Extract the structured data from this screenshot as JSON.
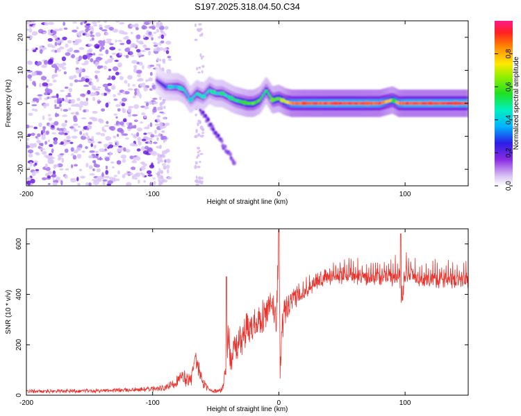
{
  "title": "S197.2025.318.04.50.C34",
  "chart_data": [
    {
      "type": "heatmap",
      "xlabel": "Height of straight line (km)",
      "ylabel": "Frequency (Hz)",
      "xlim": [
        -200,
        150
      ],
      "ylim": [
        -25,
        25
      ],
      "xticks": [
        -200,
        -100,
        0,
        100
      ],
      "yticks": [
        -20,
        -10,
        0,
        10,
        20
      ],
      "colorbar": {
        "label": "Normalized spectral amplitude",
        "range": [
          0,
          1
        ],
        "ticks": [
          0.0,
          0.2,
          0.4,
          0.6,
          0.8
        ],
        "tick_labels": [
          "0.0",
          "0.2",
          "0.4",
          "0.6",
          "0.8"
        ],
        "colormap": "white-purple-blue-cyan-green-yellow-red-magenta"
      },
      "features": [
        {
          "name": "diffuse noise region",
          "x_range": [
            -200,
            -90
          ],
          "f_range": [
            -25,
            25
          ],
          "amplitude": 0.15
        },
        {
          "name": "carrier line",
          "x_range": [
            -95,
            150
          ],
          "frequency_hz": 0,
          "amplitude": 0.85
        },
        {
          "name": "descending branch",
          "x_start": -62,
          "x_end": -35,
          "f_start": -2,
          "f_end": -18,
          "amplitude": 0.2
        }
      ],
      "ridge": {
        "x": [
          -97,
          -90,
          -85,
          -80,
          -75,
          -70,
          -65,
          -60,
          -55,
          -50,
          -45,
          -40,
          -35,
          -30,
          -25,
          -20,
          -15,
          -10,
          -5,
          0,
          5,
          10,
          20,
          40,
          60,
          80,
          90,
          95,
          100,
          120,
          150
        ],
        "f": [
          7,
          5,
          5,
          5,
          4,
          1,
          3,
          2,
          4,
          3,
          3,
          2,
          1,
          0.5,
          0,
          0,
          1,
          4,
          1,
          1.5,
          0.5,
          0,
          0,
          0,
          0,
          0,
          1,
          0,
          0,
          0,
          0
        ],
        "amplitude": [
          0.2,
          0.3,
          0.35,
          0.4,
          0.45,
          0.35,
          0.45,
          0.4,
          0.45,
          0.4,
          0.45,
          0.45,
          0.5,
          0.55,
          0.6,
          0.6,
          0.55,
          0.5,
          0.6,
          0.6,
          0.7,
          0.85,
          0.88,
          0.9,
          0.9,
          0.88,
          0.7,
          0.85,
          0.9,
          0.9,
          0.9
        ]
      }
    },
    {
      "type": "line",
      "xlabel": "Height of straight line (km)",
      "ylabel": "SNR (10 * v/v)",
      "xlim": [
        -200,
        150
      ],
      "ylim": [
        0,
        660
      ],
      "xticks": [
        -200,
        -100,
        0,
        100
      ],
      "yticks": [
        0,
        200,
        400,
        600
      ],
      "series": [
        {
          "name": "SNR",
          "color": "#e8322c",
          "x": [
            -200,
            -150,
            -110,
            -90,
            -85,
            -80,
            -75,
            -70,
            -66,
            -60,
            -55,
            -50,
            -45,
            -42,
            -40,
            -38,
            -35,
            -30,
            -25,
            -20,
            -15,
            -10,
            -5,
            -2,
            0,
            1,
            3,
            5,
            10,
            15,
            20,
            25,
            30,
            40,
            50,
            60,
            70,
            80,
            90,
            95,
            97,
            100,
            110,
            120,
            130,
            140,
            150
          ],
          "values": [
            15,
            18,
            22,
            28,
            40,
            60,
            70,
            55,
            140,
            50,
            20,
            15,
            20,
            110,
            230,
            150,
            190,
            220,
            260,
            280,
            300,
            320,
            360,
            300,
            650,
            100,
            290,
            330,
            360,
            400,
            420,
            440,
            455,
            470,
            475,
            470,
            465,
            470,
            465,
            480,
            360,
            490,
            460,
            455,
            460,
            455,
            450
          ],
          "noise_amplitude": [
            8,
            8,
            10,
            14,
            20,
            30,
            35,
            30,
            40,
            30,
            10,
            10,
            12,
            50,
            80,
            60,
            70,
            70,
            75,
            70,
            70,
            70,
            70,
            80,
            80,
            60,
            70,
            60,
            55,
            50,
            45,
            45,
            40,
            35,
            35,
            35,
            35,
            35,
            35,
            40,
            40,
            40,
            35,
            35,
            35,
            35,
            35
          ]
        }
      ]
    }
  ]
}
